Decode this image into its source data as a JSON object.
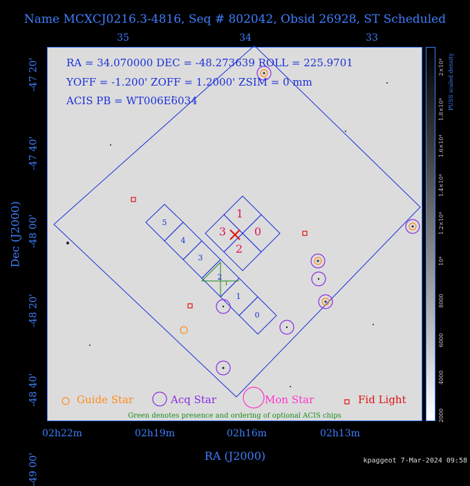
{
  "title": "Name MCXCJ0216.3-4816, Seq # 802042, Obsid 26928, ST Scheduled",
  "axes": {
    "xlabel": "RA (J2000)",
    "ylabel": "Dec (J2000)",
    "top_ticks": [
      "35",
      "34",
      "33"
    ],
    "bottom_ticks": [
      "02h22m",
      "02h19m",
      "02h16m",
      "02h13m"
    ],
    "left_ticks": [
      "-47 20'",
      "-47 40'",
      "-48 00'",
      "-48 20'",
      "-48 40'",
      "-49 00'"
    ]
  },
  "info": {
    "line1": "RA = 34.070000     DEC = -48.273639   ROLL = 225.9701",
    "line2": "YOFF =  -1.200'     ZOFF =  1.2000'      ZSIM = 0 mm",
    "line3": "ACIS PB = WT006E6034"
  },
  "chips": {
    "s": [
      "5",
      "4",
      "3",
      "2",
      "1",
      "0"
    ],
    "i": [
      "1",
      "3",
      "0",
      "2"
    ]
  },
  "colorbar": {
    "label": "PUSS scaled density",
    "ticks": [
      "2000",
      "4000",
      "6000",
      "8000",
      "10⁴",
      "1.2×10⁴",
      "1.4×10⁴",
      "1.6×10⁴",
      "1.8×10⁴",
      "2×10⁴"
    ]
  },
  "legend": {
    "guide": "Guide Star",
    "acq": "Acq Star",
    "mon": "Mon Star",
    "fid": "Fid Light",
    "note": "Green denotes presence and ordering of optional ACIS chips"
  },
  "colors": {
    "guide": "#ff8c1a",
    "acq": "#8a2be2",
    "mon": "#ff33cc",
    "fid": "#e01010",
    "outline": "#1a2fd8",
    "optional": "#1a8a1a"
  },
  "footer": "kpaggeot  7-Mar-2024 09:58"
}
